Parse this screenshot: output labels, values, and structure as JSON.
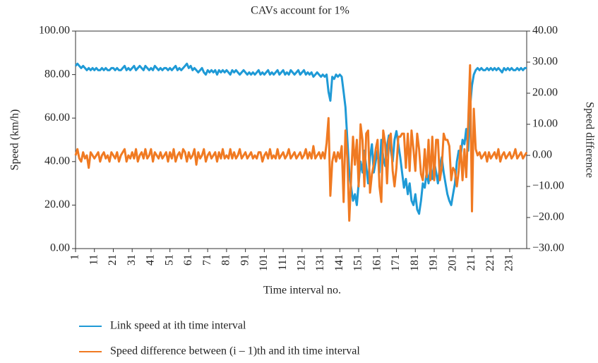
{
  "chart_data": {
    "type": "line",
    "title": "CAVs account for 1%",
    "x_label": "Time interval no.",
    "y_label": "Speed (km/h)",
    "y2_label": "Speed difference",
    "x": [
      1,
      2,
      3,
      4,
      5,
      6,
      7,
      8,
      9,
      10,
      11,
      12,
      13,
      14,
      15,
      16,
      17,
      18,
      19,
      20,
      21,
      22,
      23,
      24,
      25,
      26,
      27,
      28,
      29,
      30,
      31,
      32,
      33,
      34,
      35,
      36,
      37,
      38,
      39,
      40,
      41,
      42,
      43,
      44,
      45,
      46,
      47,
      48,
      49,
      50,
      51,
      52,
      53,
      54,
      55,
      56,
      57,
      58,
      59,
      60,
      61,
      62,
      63,
      64,
      65,
      66,
      67,
      68,
      69,
      70,
      71,
      72,
      73,
      74,
      75,
      76,
      77,
      78,
      79,
      80,
      81,
      82,
      83,
      84,
      85,
      86,
      87,
      88,
      89,
      90,
      91,
      92,
      93,
      94,
      95,
      96,
      97,
      98,
      99,
      100,
      101,
      102,
      103,
      104,
      105,
      106,
      107,
      108,
      109,
      110,
      111,
      112,
      113,
      114,
      115,
      116,
      117,
      118,
      119,
      120,
      121,
      122,
      123,
      124,
      125,
      126,
      127,
      128,
      129,
      130,
      131,
      132,
      133,
      134,
      135,
      136,
      137,
      138,
      139,
      140,
      141,
      142,
      143,
      144,
      145,
      146,
      147,
      148,
      149,
      150,
      151,
      152,
      153,
      154,
      155,
      156,
      157,
      158,
      159,
      160,
      161,
      162,
      163,
      164,
      165,
      166,
      167,
      168,
      169,
      170,
      171,
      172,
      173,
      174,
      175,
      176,
      177,
      178,
      179,
      180,
      181,
      182,
      183,
      184,
      185,
      186,
      187,
      188,
      189,
      190,
      191,
      192,
      193,
      194,
      195,
      196,
      197,
      198,
      199,
      200,
      201,
      202,
      203,
      204,
      205,
      206,
      207,
      208,
      209,
      210,
      211,
      212,
      213,
      214,
      215,
      216,
      217,
      218,
      219,
      220,
      221,
      222,
      223,
      224,
      225,
      226,
      227,
      228,
      229,
      230,
      231,
      232,
      233,
      234,
      235,
      236,
      237,
      238,
      239,
      240
    ],
    "xlim": [
      1,
      240
    ],
    "xticks": [
      1,
      11,
      21,
      31,
      41,
      51,
      61,
      71,
      81,
      91,
      101,
      111,
      121,
      131,
      141,
      151,
      161,
      171,
      181,
      191,
      201,
      211,
      221,
      231
    ],
    "ylim": [
      0,
      100
    ],
    "yticks": [
      {
        "value": 0,
        "label": "0.00"
      },
      {
        "value": 20,
        "label": "20.00"
      },
      {
        "value": 40,
        "label": "40.00"
      },
      {
        "value": 60,
        "label": "60.00"
      },
      {
        "value": 80,
        "label": "80.00"
      },
      {
        "value": 100,
        "label": "100.00"
      }
    ],
    "y2lim": [
      -30,
      40
    ],
    "y2ticks": [
      {
        "value": -30,
        "label": "−30.00"
      },
      {
        "value": -20,
        "label": "−20.00"
      },
      {
        "value": -10,
        "label": "−10.00"
      },
      {
        "value": 0,
        "label": "0.00"
      },
      {
        "value": 10,
        "label": "10.00"
      },
      {
        "value": 20,
        "label": "20.00"
      },
      {
        "value": 30,
        "label": "30.00"
      },
      {
        "value": 40,
        "label": "40.00"
      }
    ],
    "series": [
      {
        "name": "Link speed at ith time interval",
        "color": "#1f9ad6",
        "values": [
          84,
          85,
          84,
          83,
          84,
          83,
          82,
          83,
          82,
          83,
          82,
          83,
          82,
          82,
          83,
          82,
          83,
          82,
          82,
          83,
          83,
          82,
          83,
          82,
          82,
          83,
          84,
          82,
          83,
          82,
          83,
          84,
          82,
          83,
          84,
          83,
          82,
          84,
          83,
          82,
          83,
          82,
          84,
          83,
          82,
          83,
          82,
          83,
          83,
          82,
          83,
          82,
          83,
          84,
          82,
          83,
          82,
          83,
          84,
          85,
          83,
          84,
          82,
          83,
          82,
          81,
          82,
          83,
          81,
          80,
          82,
          81,
          82,
          81,
          82,
          80,
          82,
          81,
          82,
          81,
          82,
          81,
          80,
          82,
          81,
          82,
          81,
          80,
          81,
          82,
          81,
          80,
          81,
          80,
          81,
          80,
          81,
          82,
          80,
          81,
          80,
          81,
          82,
          80,
          81,
          80,
          81,
          82,
          80,
          81,
          82,
          80,
          81,
          80,
          82,
          81,
          80,
          81,
          82,
          80,
          81,
          82,
          80,
          81,
          80,
          81,
          79,
          80,
          81,
          80,
          79,
          80,
          79,
          80,
          72,
          68,
          79,
          78,
          80,
          79,
          80,
          79,
          72,
          65,
          50,
          35,
          28,
          22,
          25,
          20,
          30,
          40,
          35,
          45,
          38,
          30,
          42,
          48,
          35,
          40,
          45,
          35,
          50,
          42,
          38,
          47,
          52,
          45,
          40,
          50,
          54,
          48,
          42,
          35,
          28,
          32,
          25,
          30,
          22,
          20,
          25,
          18,
          16,
          22,
          30,
          28,
          35,
          30,
          38,
          32,
          40,
          35,
          30,
          38,
          42,
          35,
          30,
          25,
          22,
          20,
          25,
          30,
          40,
          45,
          42,
          50,
          48,
          55,
          45,
          65,
          75,
          80,
          82,
          83,
          82,
          83,
          82,
          82,
          83,
          82,
          83,
          82,
          83,
          82,
          83,
          82,
          81,
          83,
          82,
          83,
          82,
          83,
          82,
          82,
          83,
          82,
          83,
          82,
          83,
          83
        ]
      },
      {
        "name": "Speed difference between (i – 1)th and ith time interval",
        "color": "#f07a22",
        "axis": "y2",
        "values": [
          0,
          2,
          -1,
          -2,
          1,
          -1,
          0,
          -4,
          1,
          0,
          -1,
          0,
          1,
          -2,
          0,
          1,
          -1,
          0,
          -2,
          1,
          0,
          -1,
          1,
          -2,
          0,
          1,
          2,
          -2,
          0,
          -1,
          1,
          -1,
          2,
          -2,
          0,
          1,
          -1,
          2,
          -1,
          0,
          2,
          -2,
          1,
          0,
          -1,
          1,
          -1,
          0,
          1,
          -2,
          1,
          -1,
          2,
          -2,
          0,
          1,
          -1,
          2,
          1,
          -2,
          1,
          -1,
          0,
          2,
          -3,
          1,
          -1,
          0,
          2,
          -2,
          0,
          1,
          -1,
          0,
          1,
          -2,
          1,
          -1,
          2,
          -1,
          0,
          -1,
          2,
          -1,
          1,
          -1,
          0,
          2,
          -1,
          0,
          1,
          -1,
          0,
          1,
          -1,
          0,
          -1,
          1,
          1,
          -2,
          0,
          1,
          -1,
          2,
          -1,
          0,
          -1,
          2,
          -1,
          0,
          1,
          -1,
          0,
          2,
          -1,
          0,
          1,
          -1,
          0,
          1,
          -1,
          0,
          2,
          -1,
          1,
          -1,
          3,
          -1,
          0,
          1,
          -1,
          1,
          -1,
          4,
          12,
          -13,
          -2,
          1,
          -2,
          1,
          -1,
          3,
          -15,
          8,
          -1,
          -21,
          -7,
          6,
          -3,
          5,
          -10,
          10,
          5,
          -10,
          7,
          8,
          -12,
          -6,
          -3,
          2,
          5,
          -10,
          -15,
          8,
          4,
          -9,
          5,
          7,
          -5,
          -10,
          -4,
          6,
          6,
          7,
          7,
          -4,
          7,
          -5,
          8,
          2,
          -5,
          7,
          2,
          -6,
          -8,
          2,
          -7,
          5,
          -8,
          6,
          -8,
          5,
          5,
          -8,
          -4,
          7,
          5,
          5,
          3,
          -8,
          -4,
          -5,
          -10,
          -5,
          3,
          -8,
          2,
          -7,
          10,
          29,
          -18,
          15,
          2,
          0,
          1,
          -1,
          0,
          1,
          -2,
          1,
          -1,
          0,
          1,
          -1,
          2,
          -2,
          0,
          1,
          -1,
          0,
          1,
          -1,
          0,
          2,
          -1,
          0,
          1,
          -1,
          0,
          1
        ]
      }
    ]
  }
}
